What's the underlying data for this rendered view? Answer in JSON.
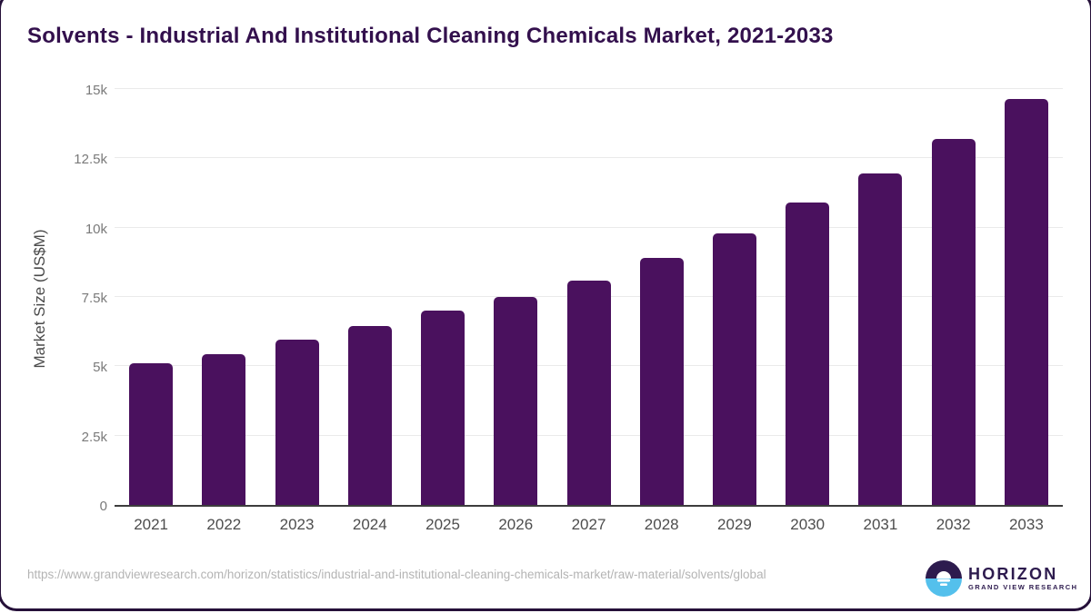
{
  "page": {
    "title": "Solvents - Industrial And Institutional Cleaning Chemicals Market, 2021-2033",
    "source_url": "https://www.grandviewresearch.com/horizon/statistics/industrial-and-institutional-cleaning-chemicals-market/raw-material/solvents/global",
    "logo": {
      "name": "HORIZON",
      "subtitle": "GRAND VIEW RESEARCH",
      "icon": "horizon-sunset-circle-icon"
    }
  },
  "chart_data": {
    "type": "bar",
    "title": "Solvents - Industrial And Institutional Cleaning Chemicals Market, 2021-2033",
    "categories": [
      "2021",
      "2022",
      "2023",
      "2024",
      "2025",
      "2026",
      "2027",
      "2028",
      "2029",
      "2030",
      "2031",
      "2032",
      "2033"
    ],
    "values": [
      5100,
      5450,
      5950,
      6450,
      7000,
      7500,
      8100,
      8900,
      9800,
      10900,
      11950,
      13200,
      14650
    ],
    "xlabel": "",
    "ylabel": "Market Size (US$M)",
    "ylim": [
      0,
      15000
    ],
    "yticks": [
      {
        "value": 0,
        "label": "0"
      },
      {
        "value": 2500,
        "label": "2.5k"
      },
      {
        "value": 5000,
        "label": "5k"
      },
      {
        "value": 7500,
        "label": "7.5k"
      },
      {
        "value": 10000,
        "label": "10k"
      },
      {
        "value": 12500,
        "label": "12.5k"
      },
      {
        "value": 15000,
        "label": "15k"
      }
    ],
    "grid": true,
    "legend_position": "none",
    "bar_color": "#4a115e"
  },
  "colors": {
    "title_text": "#33104d",
    "bar": "#4a115e",
    "gridline": "#eaeaea",
    "axis_line": "#3d3d3d",
    "y_tick_text": "#7a7a7a",
    "x_tick_text": "#4d4d4d",
    "axis_title_text": "#4a4a4a",
    "url_text": "#b4b4b4",
    "logo_purple": "#2d1b4e",
    "logo_blue": "#54c0ec",
    "frame_border": "#251039"
  }
}
